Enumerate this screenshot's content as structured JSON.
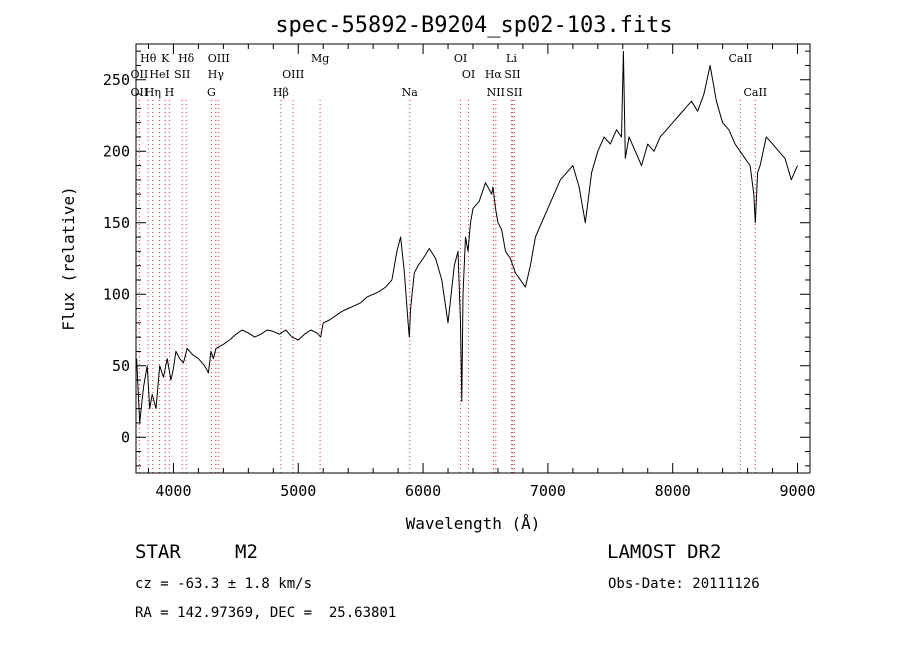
{
  "chart_data": {
    "type": "line",
    "title": "spec-55892-B9204_sp02-103.fits",
    "xlabel": "Wavelength (Å)",
    "ylabel": "Flux (relative)",
    "xlim": [
      3700,
      9100
    ],
    "ylim": [
      -25,
      275
    ],
    "x_ticks": [
      4000,
      5000,
      6000,
      7000,
      8000,
      9000
    ],
    "y_ticks": [
      0,
      50,
      100,
      150,
      200,
      250
    ],
    "grid": false,
    "series": [
      {
        "x": [
          3705,
          3730,
          3760,
          3790,
          3810,
          3830,
          3860,
          3890,
          3920,
          3950,
          3980,
          4000,
          4020,
          4050,
          4080,
          4110,
          4150,
          4200,
          4250,
          4280,
          4300,
          4320,
          4340,
          4400,
          4450,
          4500,
          4550,
          4600,
          4650,
          4700,
          4750,
          4800,
          4850,
          4900,
          4950,
          5000,
          5050,
          5100,
          5150,
          5180,
          5200,
          5250,
          5300,
          5350,
          5400,
          5450,
          5500,
          5550,
          5600,
          5650,
          5700,
          5750,
          5790,
          5820,
          5850,
          5880,
          5890,
          5900,
          5930,
          5960,
          6000,
          6050,
          6100,
          6150,
          6200,
          6250,
          6280,
          6300,
          6310,
          6320,
          6340,
          6360,
          6380,
          6400,
          6450,
          6500,
          6550,
          6560,
          6580,
          6600,
          6630,
          6660,
          6700,
          6740,
          6780,
          6820,
          6860,
          6900,
          6950,
          7000,
          7050,
          7100,
          7150,
          7200,
          7250,
          7300,
          7350,
          7400,
          7450,
          7500,
          7550,
          7590,
          7605,
          7620,
          7650,
          7700,
          7750,
          7800,
          7850,
          7900,
          7950,
          8000,
          8050,
          8100,
          8150,
          8200,
          8250,
          8300,
          8350,
          8400,
          8450,
          8500,
          8540,
          8580,
          8620,
          8650,
          8662,
          8680,
          8700,
          8750,
          8800,
          8850,
          8900,
          8950,
          9000
        ],
        "y": [
          55,
          10,
          35,
          50,
          20,
          30,
          20,
          50,
          42,
          55,
          40,
          48,
          60,
          55,
          52,
          62,
          58,
          55,
          50,
          45,
          60,
          55,
          62,
          65,
          68,
          72,
          75,
          73,
          70,
          72,
          75,
          74,
          72,
          75,
          70,
          68,
          72,
          75,
          73,
          70,
          80,
          82,
          85,
          88,
          90,
          92,
          94,
          98,
          100,
          102,
          105,
          110,
          130,
          140,
          115,
          80,
          70,
          90,
          115,
          120,
          125,
          132,
          125,
          110,
          80,
          120,
          130,
          80,
          25,
          100,
          140,
          130,
          150,
          160,
          165,
          178,
          170,
          175,
          160,
          150,
          145,
          130,
          125,
          115,
          110,
          105,
          120,
          140,
          150,
          160,
          170,
          180,
          185,
          190,
          175,
          150,
          185,
          200,
          210,
          205,
          215,
          210,
          270,
          195,
          210,
          200,
          190,
          205,
          200,
          210,
          215,
          220,
          225,
          230,
          235,
          228,
          240,
          260,
          235,
          220,
          215,
          205,
          200,
          195,
          190,
          170,
          150,
          185,
          190,
          210,
          205,
          200,
          195,
          180,
          190
        ]
      }
    ],
    "line_markers": [
      {
        "label": "Hθ",
        "x": 3798,
        "row": 1
      },
      {
        "label": "K",
        "x": 3934,
        "row": 1
      },
      {
        "label": "Hδ",
        "x": 4102,
        "row": 1
      },
      {
        "label": "OIII",
        "x": 4363,
        "row": 1
      },
      {
        "label": "Mg",
        "x": 5175,
        "row": 1
      },
      {
        "label": "OI",
        "x": 6300,
        "row": 1
      },
      {
        "label": "Li",
        "x": 6708,
        "row": 1
      },
      {
        "label": "CaII",
        "x": 8542,
        "row": 1
      },
      {
        "label": "OII",
        "x": 3727,
        "row": 2
      },
      {
        "label": "HeI",
        "x": 3889,
        "row": 2
      },
      {
        "label": "SII",
        "x": 4070,
        "row": 2
      },
      {
        "label": "Hγ",
        "x": 4340,
        "row": 2
      },
      {
        "label": "OIII",
        "x": 4959,
        "row": 2
      },
      {
        "label": "OI",
        "x": 6364,
        "row": 2
      },
      {
        "label": "Hα",
        "x": 6563,
        "row": 2
      },
      {
        "label": "SII",
        "x": 6716,
        "row": 2
      },
      {
        "label": "OII",
        "x": 3727,
        "row": 3
      },
      {
        "label": "Hη",
        "x": 3835,
        "row": 3
      },
      {
        "label": "H",
        "x": 3968,
        "row": 3
      },
      {
        "label": "G",
        "x": 4304,
        "row": 3
      },
      {
        "label": "Hβ",
        "x": 4861,
        "row": 3
      },
      {
        "label": "Na",
        "x": 5893,
        "row": 3
      },
      {
        "label": "NII",
        "x": 6583,
        "row": 3
      },
      {
        "label": "SII",
        "x": 6731,
        "row": 3
      },
      {
        "label": "CaII",
        "x": 8662,
        "row": 3
      }
    ]
  },
  "info": {
    "object_class": "STAR",
    "subclass": "M2",
    "survey": "LAMOST DR2",
    "cz": "cz = -63.3 ± 1.8 km/s",
    "obs_date": "Obs-Date: 20111126",
    "coords": "RA = 142.97369, DEC =  25.63801"
  },
  "colors": {
    "spectrum": "#000000",
    "marker_line": "#e03030",
    "axes": "#000000"
  }
}
